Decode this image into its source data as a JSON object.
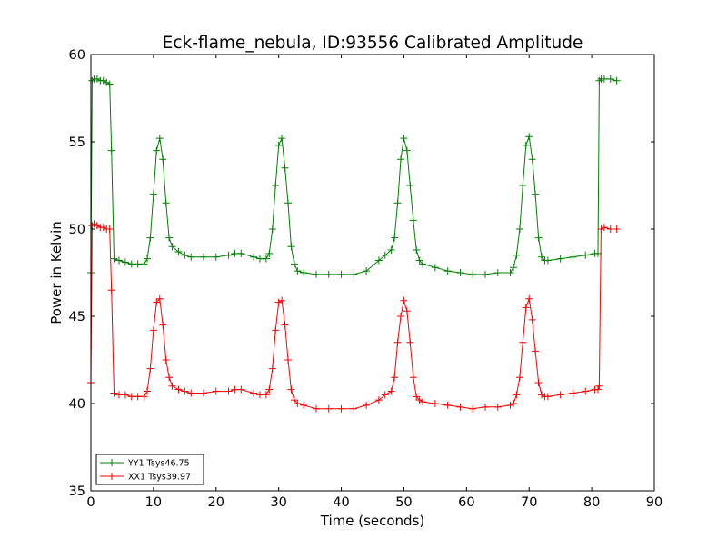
{
  "chart_data": {
    "type": "line",
    "title": "Eck-flame_nebula, ID:93556 Calibrated Amplitude",
    "xlabel": "Time (seconds)",
    "ylabel": "Power in Kelvin",
    "xlim": [
      0,
      90
    ],
    "ylim": [
      35,
      60
    ],
    "xticks": [
      "0",
      "10",
      "20",
      "30",
      "40",
      "50",
      "60",
      "70",
      "80",
      "90"
    ],
    "yticks": [
      "35",
      "40",
      "45",
      "50",
      "55",
      "60"
    ],
    "grid": false,
    "legend_position": "lower-left",
    "colors": {
      "YY1": "#008000",
      "XX1": "#ff0000"
    },
    "series": [
      {
        "name": "YY1 Tsys46.75",
        "color": "#008000",
        "x": [
          0,
          0.2,
          0.5,
          1,
          1.5,
          2,
          2.5,
          3,
          3.3,
          3.7,
          4.5,
          5.5,
          6.5,
          7.5,
          8.5,
          9,
          9.5,
          10,
          10.5,
          11,
          11.5,
          12,
          12.5,
          13,
          14,
          15,
          16,
          18,
          20,
          22,
          23,
          24,
          26,
          27,
          28,
          28.5,
          29,
          29.5,
          30,
          30.5,
          31,
          31.5,
          32,
          32.5,
          33,
          34,
          36,
          38,
          40,
          42,
          44,
          46,
          47,
          48,
          48.5,
          49,
          49.5,
          50,
          50.5,
          51,
          51.5,
          52,
          52.5,
          53,
          55,
          57,
          59,
          61,
          63,
          65,
          67,
          67.5,
          68,
          68.5,
          69,
          69.5,
          70,
          70.5,
          71,
          71.5,
          72,
          72.5,
          73,
          75,
          77,
          79,
          80.5,
          81,
          81.2,
          81.5,
          82,
          83,
          84
        ],
        "y": [
          47.5,
          58.5,
          58.6,
          58.6,
          58.5,
          58.5,
          58.4,
          58.3,
          54.5,
          48.3,
          48.2,
          48.1,
          48.0,
          48.0,
          48.0,
          48.3,
          49.5,
          52.0,
          54.5,
          55.2,
          54.0,
          51.5,
          49.5,
          49.0,
          48.7,
          48.5,
          48.4,
          48.4,
          48.4,
          48.5,
          48.6,
          48.6,
          48.4,
          48.3,
          48.3,
          48.6,
          50.0,
          52.5,
          54.8,
          55.2,
          53.5,
          51.5,
          49.0,
          48.0,
          47.6,
          47.5,
          47.4,
          47.4,
          47.4,
          47.4,
          47.6,
          48.2,
          48.5,
          48.8,
          49.5,
          51.5,
          54.0,
          55.2,
          54.5,
          52.5,
          50.5,
          48.8,
          48.2,
          48.0,
          47.8,
          47.6,
          47.5,
          47.4,
          47.4,
          47.5,
          47.5,
          47.8,
          48.5,
          50.0,
          52.5,
          54.8,
          55.3,
          54.0,
          52.0,
          49.5,
          48.4,
          48.2,
          48.2,
          48.3,
          48.4,
          48.5,
          48.6,
          48.6,
          58.5,
          58.6,
          58.6,
          58.6,
          58.5
        ]
      },
      {
        "name": "XX1 Tsys39.97",
        "color": "#ff0000",
        "x": [
          0,
          0.2,
          0.5,
          1,
          1.5,
          2,
          2.5,
          3,
          3.3,
          3.7,
          4.5,
          5.5,
          6.5,
          7.5,
          8.5,
          9,
          9.5,
          10,
          10.5,
          11,
          11.5,
          12,
          12.5,
          13,
          14,
          15,
          16,
          18,
          20,
          22,
          23,
          24,
          26,
          27,
          28,
          28.5,
          29,
          29.5,
          30,
          30.5,
          31,
          31.5,
          32,
          32.5,
          33,
          34,
          36,
          38,
          40,
          42,
          44,
          46,
          47,
          48,
          48.5,
          49,
          49.5,
          50,
          50.5,
          51,
          51.5,
          52,
          52.5,
          53,
          55,
          57,
          59,
          61,
          63,
          65,
          67,
          67.5,
          68,
          68.5,
          69,
          69.5,
          70,
          70.5,
          71,
          71.5,
          72,
          72.5,
          73,
          75,
          77,
          79,
          80.5,
          81,
          81.2,
          81.5,
          82,
          83,
          84
        ],
        "y": [
          41.2,
          50.2,
          50.3,
          50.2,
          50.1,
          50.1,
          50.0,
          50.0,
          46.5,
          40.6,
          40.5,
          40.5,
          40.4,
          40.4,
          40.4,
          40.7,
          42.0,
          44.2,
          45.8,
          46.0,
          44.5,
          42.5,
          41.5,
          41.0,
          40.8,
          40.7,
          40.6,
          40.6,
          40.7,
          40.7,
          40.8,
          40.8,
          40.6,
          40.5,
          40.5,
          40.8,
          42.0,
          44.2,
          45.8,
          45.9,
          44.5,
          42.5,
          40.8,
          40.2,
          40.0,
          39.9,
          39.7,
          39.7,
          39.7,
          39.7,
          39.9,
          40.2,
          40.5,
          40.7,
          41.5,
          43.5,
          45.0,
          45.9,
          45.3,
          43.5,
          41.5,
          40.4,
          40.2,
          40.1,
          40.0,
          39.9,
          39.8,
          39.7,
          39.8,
          39.8,
          39.9,
          40.0,
          40.5,
          41.5,
          43.5,
          45.5,
          46.0,
          44.8,
          43.0,
          41.2,
          40.5,
          40.4,
          40.4,
          40.5,
          40.6,
          40.7,
          40.8,
          40.8,
          41.0,
          50.0,
          50.1,
          50.0,
          50.0
        ]
      }
    ]
  }
}
